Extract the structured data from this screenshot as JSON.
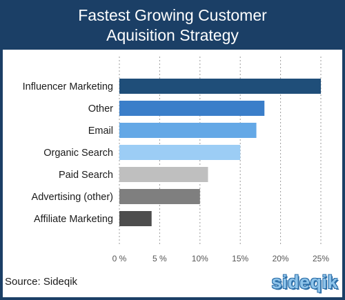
{
  "title_line1": "Fastest Growing Customer",
  "title_line2": "Aquisition Strategy",
  "source": "Source: Sideqik",
  "logo_text": "sideqik",
  "colors": {
    "header_bg": "#1b3f66",
    "panel_bg": "#ffffff",
    "grid": "#9a9a9a",
    "logo": "#8fc4ea"
  },
  "chart_data": {
    "type": "bar",
    "orientation": "horizontal",
    "categories": [
      "Influencer Marketing",
      "Other",
      "Email",
      "Organic Search",
      "Paid Search",
      "Advertising (other)",
      "Affiliate Marketing"
    ],
    "values": [
      25,
      18,
      17,
      15,
      11,
      10,
      4
    ],
    "bar_colors": [
      "#1f4e79",
      "#3a7ec9",
      "#64a8e6",
      "#9ccdf5",
      "#bfbfbf",
      "#7f7f7f",
      "#4d4d4d"
    ],
    "xticks": [
      "0 %",
      "5 %",
      "10%",
      "15%",
      "20%",
      "25%"
    ],
    "xtick_values": [
      0,
      5,
      10,
      15,
      20,
      25
    ],
    "xlim": [
      0,
      25
    ],
    "grid": true,
    "grid_style": "dashed-vertical",
    "legend": false
  }
}
